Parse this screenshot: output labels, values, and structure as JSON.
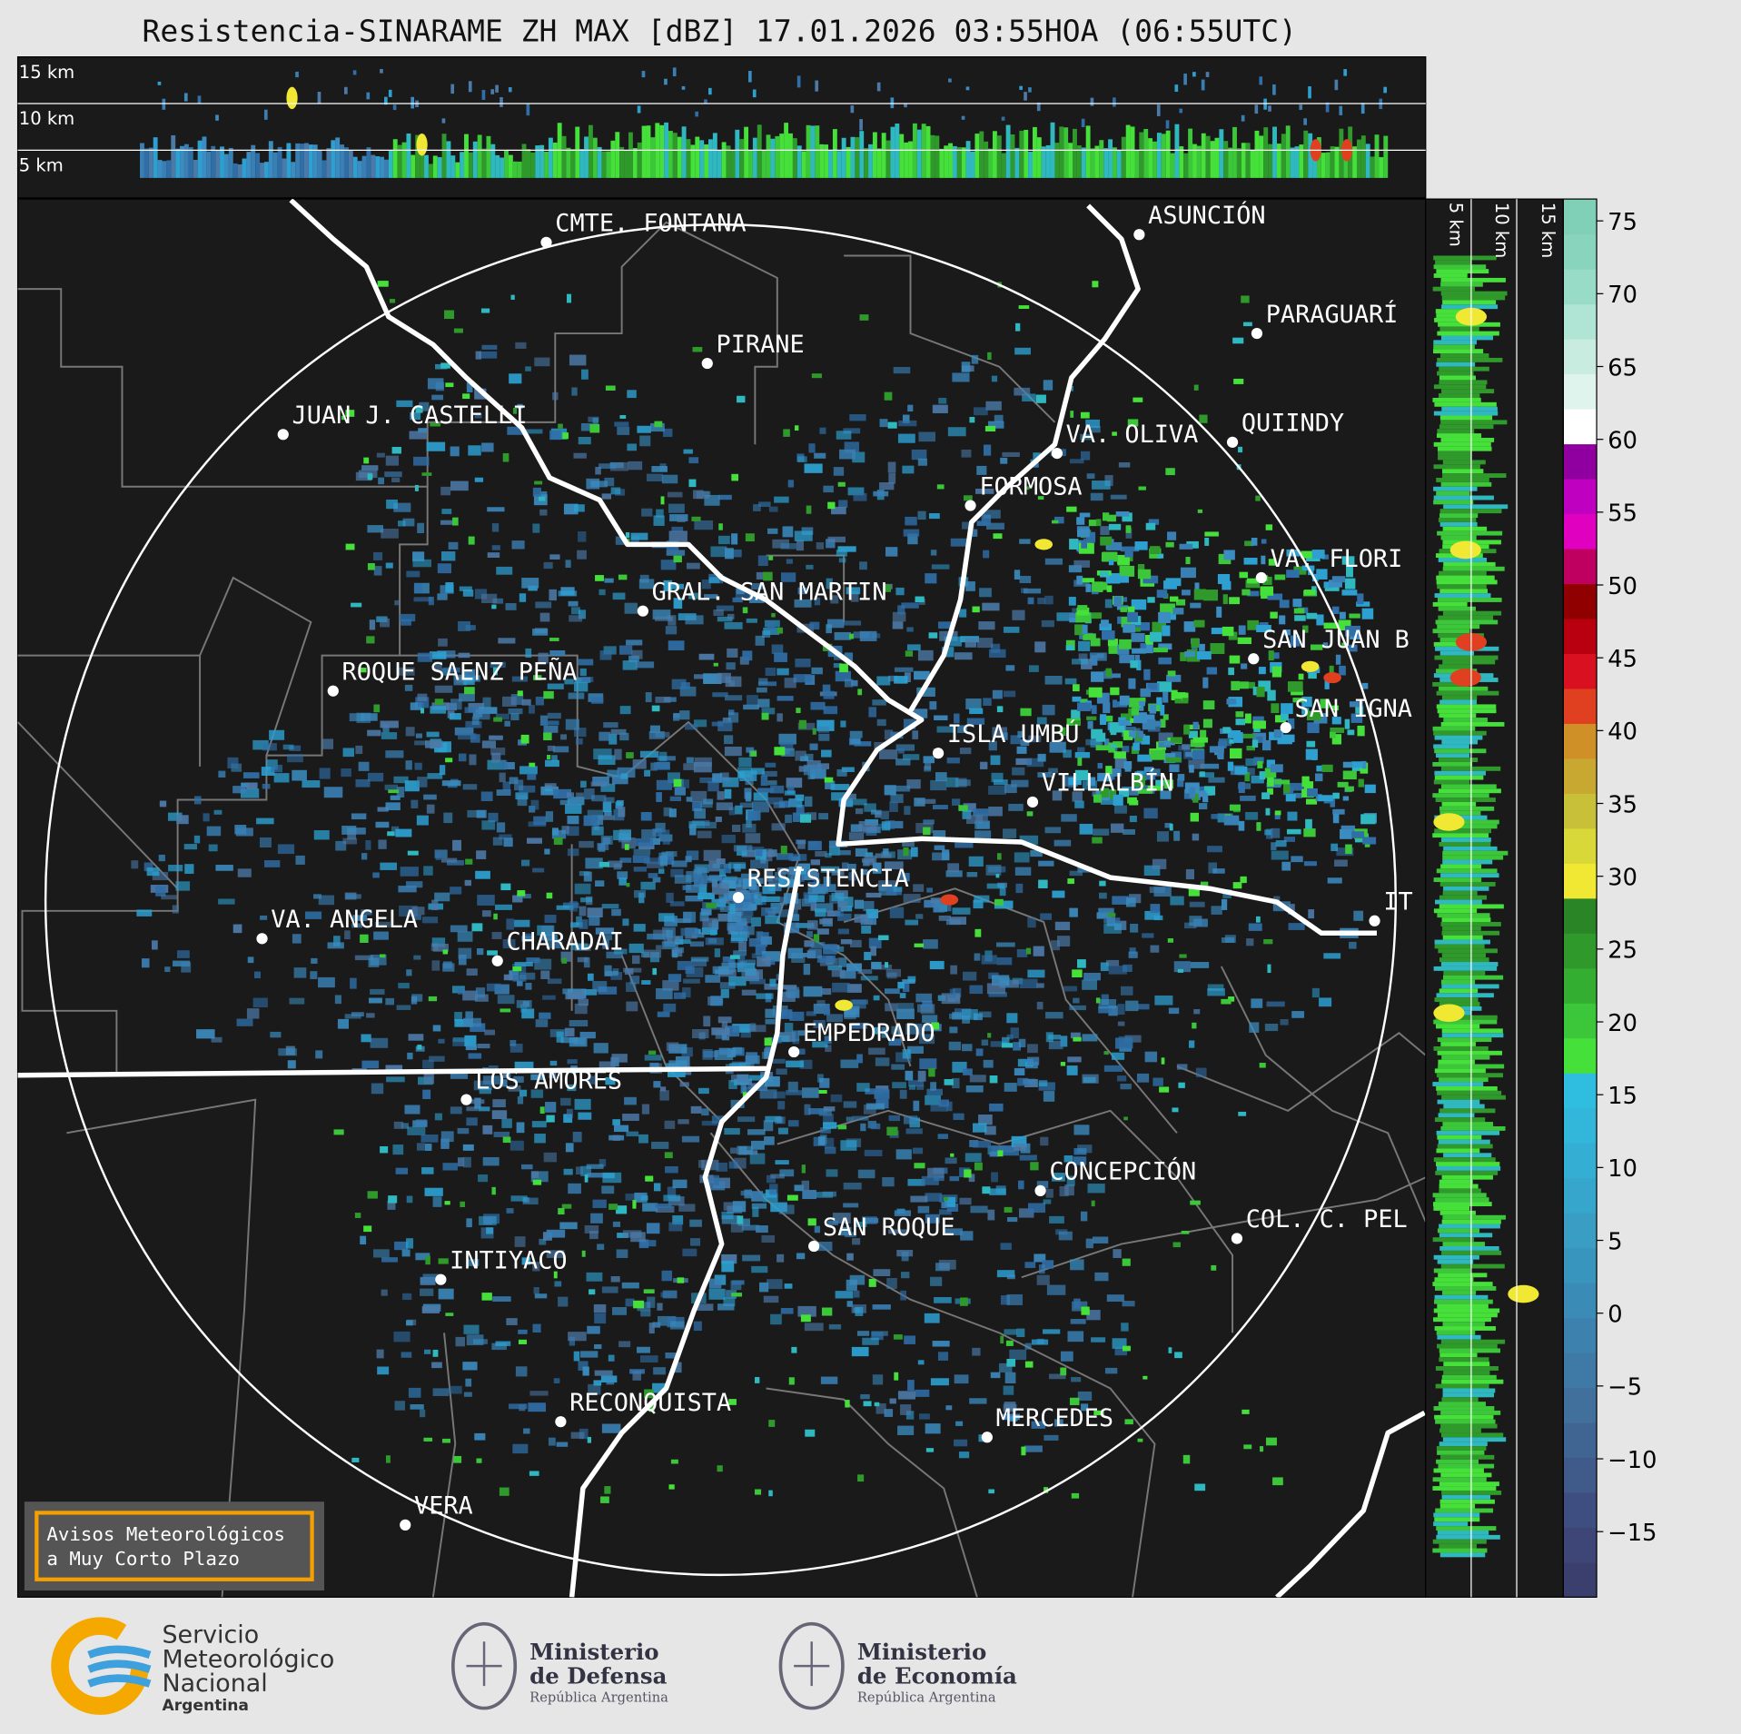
{
  "title": "Resistencia-SINARAME ZH MAX [dBZ] 17.01.2026 03:55HOA (06:55UTC)",
  "top_section_labels": [
    "15 km",
    "10 km",
    "5 km"
  ],
  "side_section_labels": [
    "5 km",
    "10 km",
    "15 km"
  ],
  "cities": [
    "CMTE. FONTANA",
    "PIRANE",
    "JUAN J. CASTELLI",
    "ASUNCIÓN",
    "PARAGUARÍ",
    "QUIINDY",
    "VA. OLIVA",
    "FORMOSA",
    "VA. FLORI",
    "GRAL. SAN MARTIN",
    "SAN JUAN B",
    "ROQUE SAENZ PEÑA",
    "SAN IGNA",
    "ISLA UMBÚ",
    "VILLALBÍN",
    "RESISTENCIA",
    "VA. ANGELA",
    "CHARADAI",
    "EMPEDRADO",
    "LOS AMORES",
    "CONCEPCIÓN",
    "COL. C. PEL",
    "SAN ROQUE",
    "INTIYACO",
    "RECONQUISTA",
    "MERCEDES",
    "VERA",
    "IT"
  ],
  "colorbar": {
    "lim": [
      -19.5,
      76.5
    ],
    "ticks": [
      {
        "value": -15,
        "label": "−15"
      },
      {
        "value": -10,
        "label": "−10"
      },
      {
        "value": -5,
        "label": "−5"
      },
      0,
      5,
      10,
      15,
      20,
      25,
      30,
      35,
      40,
      45,
      50,
      55,
      60,
      65,
      70,
      75
    ],
    "colors": [
      "#3b3f6e",
      "#3d4676",
      "#3f4e80",
      "#405a8a",
      "#416593",
      "#42709c",
      "#3f79a6",
      "#3d82ae",
      "#3a8bb5",
      "#3895bd",
      "#3a9dc4",
      "#37a6cc",
      "#34aed3",
      "#32b6da",
      "#2fbee0",
      "#46e03a",
      "#3cc63a",
      "#34ae30",
      "#2f9a2b",
      "#2a8526",
      "#f0e832",
      "#d8d838",
      "#c8c038",
      "#c8a830",
      "#d09028",
      "#e04020",
      "#d81020",
      "#b80010",
      "#900000",
      "#c00060",
      "#e000c0",
      "#c000c0",
      "#9000a0",
      "#ffffff",
      "#e0f4ee",
      "#c8ece0",
      "#b0e4d4",
      "#98dcc8",
      "#88d4bc",
      "#80d0b8"
    ]
  },
  "notice": [
    "Avisos Meteorológicos",
    "a Muy Corto Plazo"
  ],
  "logos": {
    "smn": [
      "Servicio",
      "Meteorológico",
      "Nacional",
      "Argentina"
    ],
    "defensa": [
      "Ministerio",
      "de Defensa",
      "República Argentina"
    ],
    "economia": [
      "Ministerio",
      "de Economía",
      "República Argentina"
    ]
  }
}
